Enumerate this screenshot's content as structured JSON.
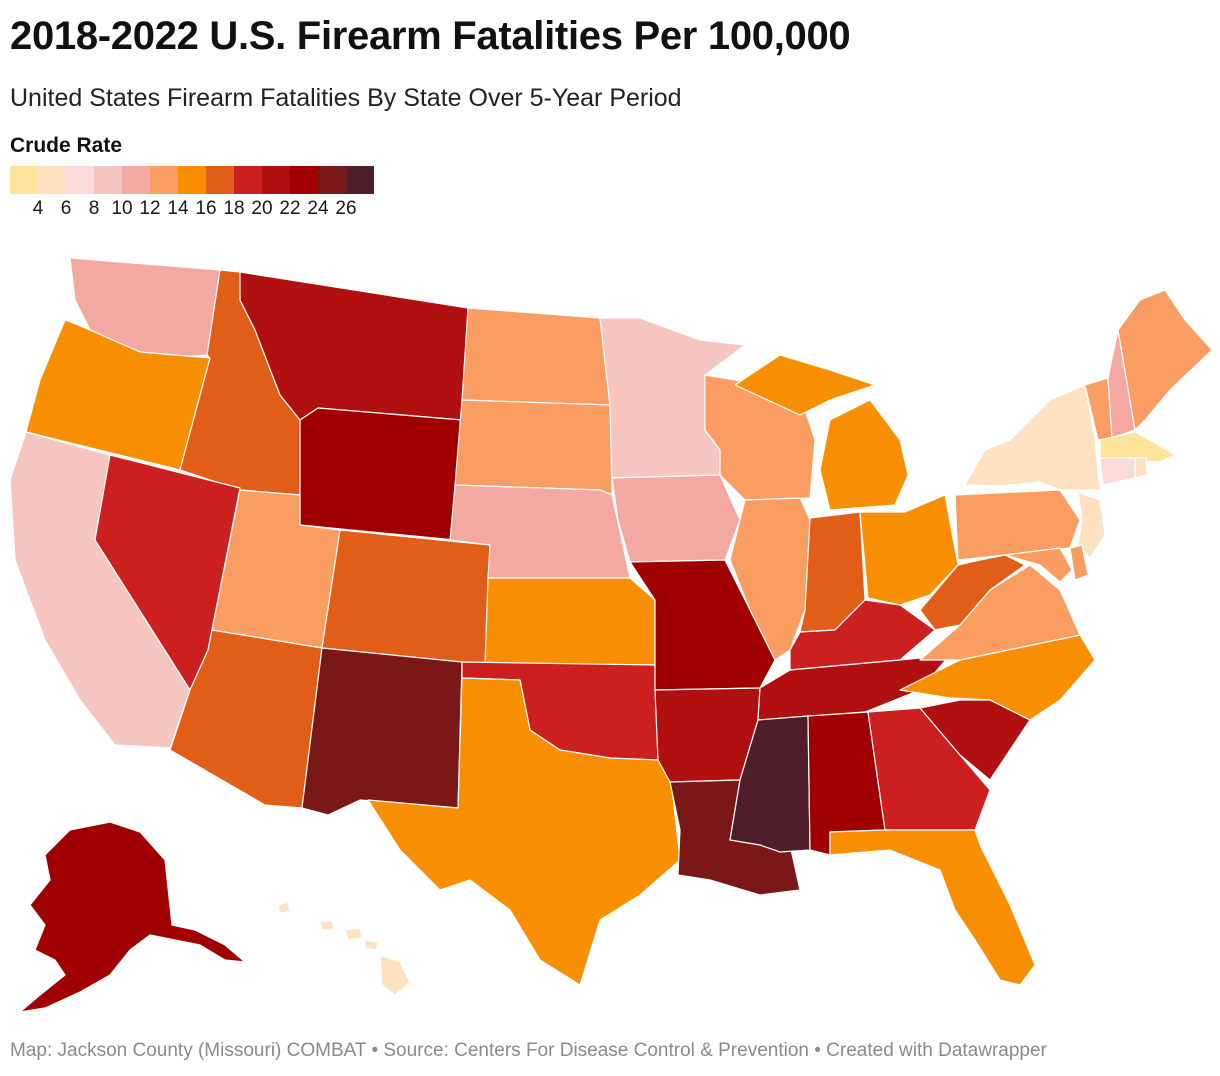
{
  "header": {
    "title": "2018-2022 U.S. Firearm Fatalities Per 100,000",
    "subtitle": "United States Firearm Fatalities By State Over 5-Year Period"
  },
  "legend": {
    "title": "Crude Rate",
    "swatches": [
      "#fde49a",
      "#fde1c0",
      "#fbdada",
      "#f7c5c0",
      "#f3a9a2",
      "#f99d62",
      "#f88e01",
      "#e05e18",
      "#cc1f1f",
      "#b11010",
      "#a00000",
      "#7a1818",
      "#4e1f2b"
    ],
    "ticks": [
      "4",
      "6",
      "8",
      "10",
      "12",
      "14",
      "16",
      "18",
      "20",
      "22",
      "24",
      "26"
    ]
  },
  "states": {
    "WA": "#f3a9a2",
    "OR": "#f88e01",
    "CA": "#f7c5c0",
    "ID": "#e05e18",
    "NV": "#cc1f1f",
    "MT": "#b11010",
    "WY": "#a00000",
    "UT": "#f99d62",
    "AZ": "#e05e18",
    "CO": "#e05e18",
    "NM": "#7a1818",
    "ND": "#f99d62",
    "SD": "#f99d62",
    "NE": "#f3a9a2",
    "KS": "#f88e01",
    "OK": "#cc1f1f",
    "TX": "#f88e01",
    "MN": "#f7c5c0",
    "IA": "#f3a9a2",
    "MO": "#a00000",
    "AR": "#b11010",
    "LA": "#7a1818",
    "WI": "#f99d62",
    "IL": "#f99d62",
    "MI": "#f88e01",
    "IN": "#e05e18",
    "OH": "#f88e01",
    "KY": "#cc1f1f",
    "TN": "#b11010",
    "MS": "#4e1f2b",
    "AL": "#a00000",
    "GA": "#cc1f1f",
    "FL": "#f88e01",
    "SC": "#b11010",
    "NC": "#f88e01",
    "VA": "#f99d62",
    "WV": "#e05e18",
    "PA": "#f99d62",
    "NY": "#fde1c0",
    "NJ": "#fde1c0",
    "MD": "#f99d62",
    "DE": "#f99d62",
    "CT": "#fbdada",
    "RI": "#fde1c0",
    "MA": "#fde49a",
    "VT": "#f99d62",
    "NH": "#f3a9a2",
    "ME": "#f99d62",
    "AK": "#a00000",
    "HI": "#fde1c0"
  },
  "footer": {
    "text": "Map: Jackson County (Missouri) COMBAT • Source: Centers For Disease Control & Prevention  • Created with Datawrapper"
  }
}
